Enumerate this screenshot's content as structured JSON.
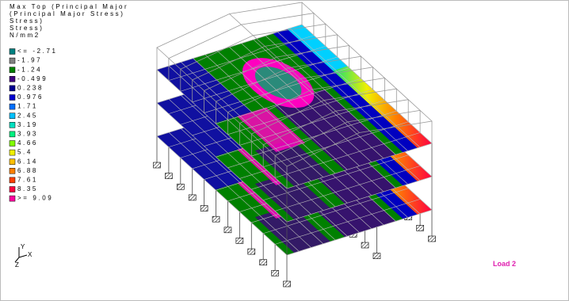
{
  "legend": {
    "title_lines": [
      "Max Top (Principal Major",
      "(Principal Major Stress)",
      "Stress)",
      "Stress)",
      "N/mm2"
    ],
    "entries": [
      {
        "label": "<= -2.71",
        "color": "#008080"
      },
      {
        "label": "-1.97",
        "color": "#808080"
      },
      {
        "label": "-1.24",
        "color": "#008000"
      },
      {
        "label": "-0.499",
        "color": "#400080"
      },
      {
        "label": "0.238",
        "color": "#000090"
      },
      {
        "label": "0.976",
        "color": "#0000d0"
      },
      {
        "label": "1.71",
        "color": "#0070ff"
      },
      {
        "label": "2.45",
        "color": "#00c0ff"
      },
      {
        "label": "3.19",
        "color": "#00e0c0"
      },
      {
        "label": "3.93",
        "color": "#00f080"
      },
      {
        "label": "4.66",
        "color": "#80ff00"
      },
      {
        "label": "5.4",
        "color": "#f0f000"
      },
      {
        "label": "6.14",
        "color": "#ffc000"
      },
      {
        "label": "6.88",
        "color": "#ff8000"
      },
      {
        "label": "7.61",
        "color": "#ff4000"
      },
      {
        "label": "8.35",
        "color": "#ff0040"
      },
      {
        "label": ">= 9.09",
        "color": "#ff00a0"
      }
    ]
  },
  "axes": {
    "y": "Y",
    "x": "X",
    "z": "Z"
  },
  "load_label": "Load 2"
}
